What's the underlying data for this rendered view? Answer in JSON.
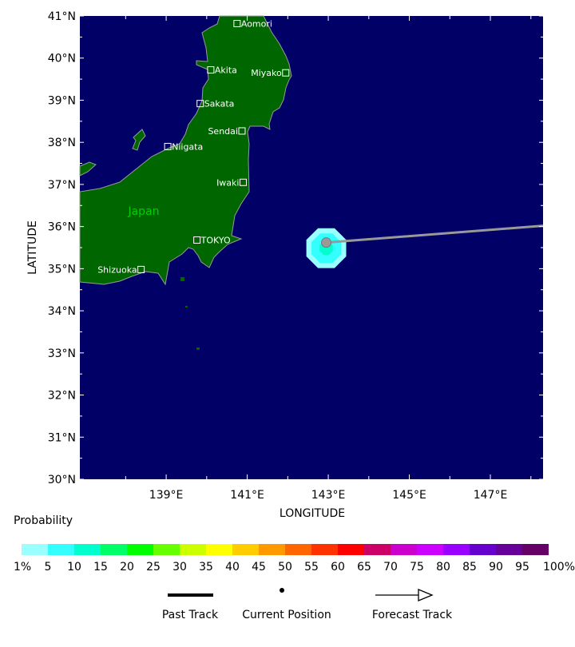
{
  "map": {
    "extent": {
      "lon_min": 136.87,
      "lon_max": 148.3,
      "lat_min": 30,
      "lat_max": 41
    },
    "colors": {
      "ocean": "#000066",
      "land": "#006600",
      "coast": "#999999",
      "track": "#999999",
      "current_position": "#999999",
      "city_label": "#ffffff",
      "country_label": "#00cc00"
    },
    "country_label": "Japan",
    "cities": [
      {
        "name": "Aomori",
        "lon": 140.75,
        "lat": 40.82
      },
      {
        "name": "Akita",
        "lon": 140.1,
        "lat": 39.72
      },
      {
        "name": "Miyako",
        "lon": 141.95,
        "lat": 39.65
      },
      {
        "name": "Sakata",
        "lon": 139.84,
        "lat": 38.92
      },
      {
        "name": "Sendai",
        "lon": 140.87,
        "lat": 38.27
      },
      {
        "name": "Niigata",
        "lon": 139.04,
        "lat": 37.9
      },
      {
        "name": "Iwaki",
        "lon": 140.9,
        "lat": 37.05
      },
      {
        "name": "TOKYO",
        "lon": 139.76,
        "lat": 35.68
      },
      {
        "name": "Shizuoka",
        "lon": 138.38,
        "lat": 34.98
      }
    ],
    "current_position": {
      "lon": 142.95,
      "lat": 35.62
    },
    "forecast_track": [
      {
        "lon": 142.95,
        "lat": 35.62
      },
      {
        "lon": 148.3,
        "lat": 36.02
      }
    ],
    "probability_contours": [
      {
        "min_pct": 1,
        "color": "#99ffff"
      },
      {
        "min_pct": 5,
        "color": "#33ffff"
      },
      {
        "min_pct": 10,
        "color": "#00ffcc"
      }
    ]
  },
  "axes": {
    "xlabel": "LONGITUDE",
    "ylabel": "LATITUDE",
    "lat_ticks": [
      "41°N",
      "40°N",
      "39°N",
      "38°N",
      "37°N",
      "36°N",
      "35°N",
      "34°N",
      "33°N",
      "32°N",
      "31°N",
      "30°N"
    ],
    "lon_ticks": [
      "139°E",
      "141°E",
      "143°E",
      "145°E",
      "147°E"
    ]
  },
  "colorbar": {
    "title": "Probability",
    "colors": [
      "#99ffff",
      "#33ffff",
      "#00ffcc",
      "#00ff66",
      "#00ff00",
      "#66ff00",
      "#ccff00",
      "#ffff00",
      "#ffcc00",
      "#ff9900",
      "#ff6600",
      "#ff3300",
      "#ff0000",
      "#cc0066",
      "#cc00cc",
      "#cc00ff",
      "#9900ff",
      "#6600cc",
      "#660099",
      "#660066"
    ],
    "labels": [
      "1%",
      "5",
      "10",
      "15",
      "20",
      "25",
      "30",
      "35",
      "40",
      "45",
      "50",
      "55",
      "60",
      "65",
      "70",
      "75",
      "80",
      "85",
      "90",
      "95",
      "100%"
    ]
  },
  "legend": {
    "past_track": "Past Track",
    "current_position": "Current Position",
    "forecast_track": "Forecast Track"
  }
}
